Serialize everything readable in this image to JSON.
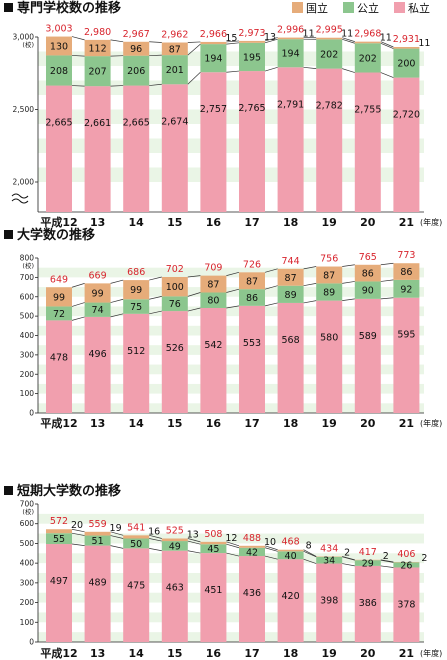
{
  "colors": {
    "national": "#e6ac7a",
    "public": "#8cc68e",
    "private": "#f19fae",
    "total": "#d8252e",
    "stripe": "#eaf5e6"
  },
  "legend": {
    "national": "国立",
    "public": "公立",
    "private": "私立"
  },
  "chart_data": [
    {
      "type": "bar",
      "stacked": true,
      "title": "専門学校数の推移",
      "y_unit": "(校)",
      "x_unit": "(年度)",
      "categories": [
        "平成12",
        "13",
        "14",
        "15",
        "16",
        "17",
        "18",
        "19",
        "20",
        "21"
      ],
      "yticks": [
        "3,000",
        "2,500",
        "2,000"
      ],
      "axis_break": true,
      "series": [
        {
          "name": "私立",
          "values": [
            2665,
            2661,
            2665,
            2674,
            2757,
            2765,
            2791,
            2782,
            2755,
            2720
          ]
        },
        {
          "name": "公立",
          "values": [
            208,
            207,
            206,
            201,
            194,
            195,
            194,
            202,
            202,
            200
          ]
        },
        {
          "name": "国立",
          "values": [
            130,
            112,
            96,
            87,
            15,
            13,
            11,
            11,
            11,
            11
          ]
        }
      ],
      "totals": [
        "3,003",
        "2,980",
        "2,967",
        "2,962",
        "2,966",
        "2,973",
        "2,996",
        "2,995",
        "2,968",
        "2,931"
      ],
      "private_labels": [
        "2,665",
        "2,661",
        "2,665",
        "2,674",
        "2,757",
        "2,765",
        "2,791",
        "2,782",
        "2,755",
        "2,720"
      ]
    },
    {
      "type": "bar",
      "stacked": true,
      "title": "大学数の推移",
      "y_unit": "(校)",
      "x_unit": "(年度)",
      "categories": [
        "平成12",
        "13",
        "14",
        "15",
        "16",
        "17",
        "18",
        "19",
        "20",
        "21"
      ],
      "yticks": [
        "800",
        "700",
        "600",
        "500",
        "400",
        "300",
        "200",
        "100",
        "0"
      ],
      "ylim": [
        0,
        800
      ],
      "series": [
        {
          "name": "私立",
          "values": [
            478,
            496,
            512,
            526,
            542,
            553,
            568,
            580,
            589,
            595
          ]
        },
        {
          "name": "公立",
          "values": [
            72,
            74,
            75,
            76,
            80,
            86,
            89,
            89,
            90,
            92
          ]
        },
        {
          "name": "国立",
          "values": [
            99,
            99,
            99,
            100,
            87,
            87,
            87,
            87,
            86,
            86
          ]
        }
      ],
      "totals": [
        "649",
        "669",
        "686",
        "702",
        "709",
        "726",
        "744",
        "756",
        "765",
        "773"
      ]
    },
    {
      "type": "bar",
      "stacked": true,
      "title": "短期大学数の推移",
      "y_unit": "(校)",
      "x_unit": "(年度)",
      "categories": [
        "平成12",
        "13",
        "14",
        "15",
        "16",
        "17",
        "18",
        "19",
        "20",
        "21"
      ],
      "yticks": [
        "700",
        "600",
        "500",
        "400",
        "300",
        "200",
        "100",
        "0"
      ],
      "ylim": [
        0,
        700
      ],
      "series": [
        {
          "name": "私立",
          "values": [
            497,
            489,
            475,
            463,
            451,
            436,
            420,
            398,
            386,
            378
          ]
        },
        {
          "name": "公立",
          "values": [
            55,
            51,
            50,
            49,
            45,
            42,
            40,
            34,
            29,
            26
          ]
        },
        {
          "name": "国立",
          "values": [
            20,
            19,
            16,
            13,
            12,
            10,
            8,
            2,
            2,
            2
          ]
        }
      ],
      "totals": [
        "572",
        "559",
        "541",
        "525",
        "508",
        "488",
        "468",
        "434",
        "417",
        "406"
      ]
    }
  ]
}
